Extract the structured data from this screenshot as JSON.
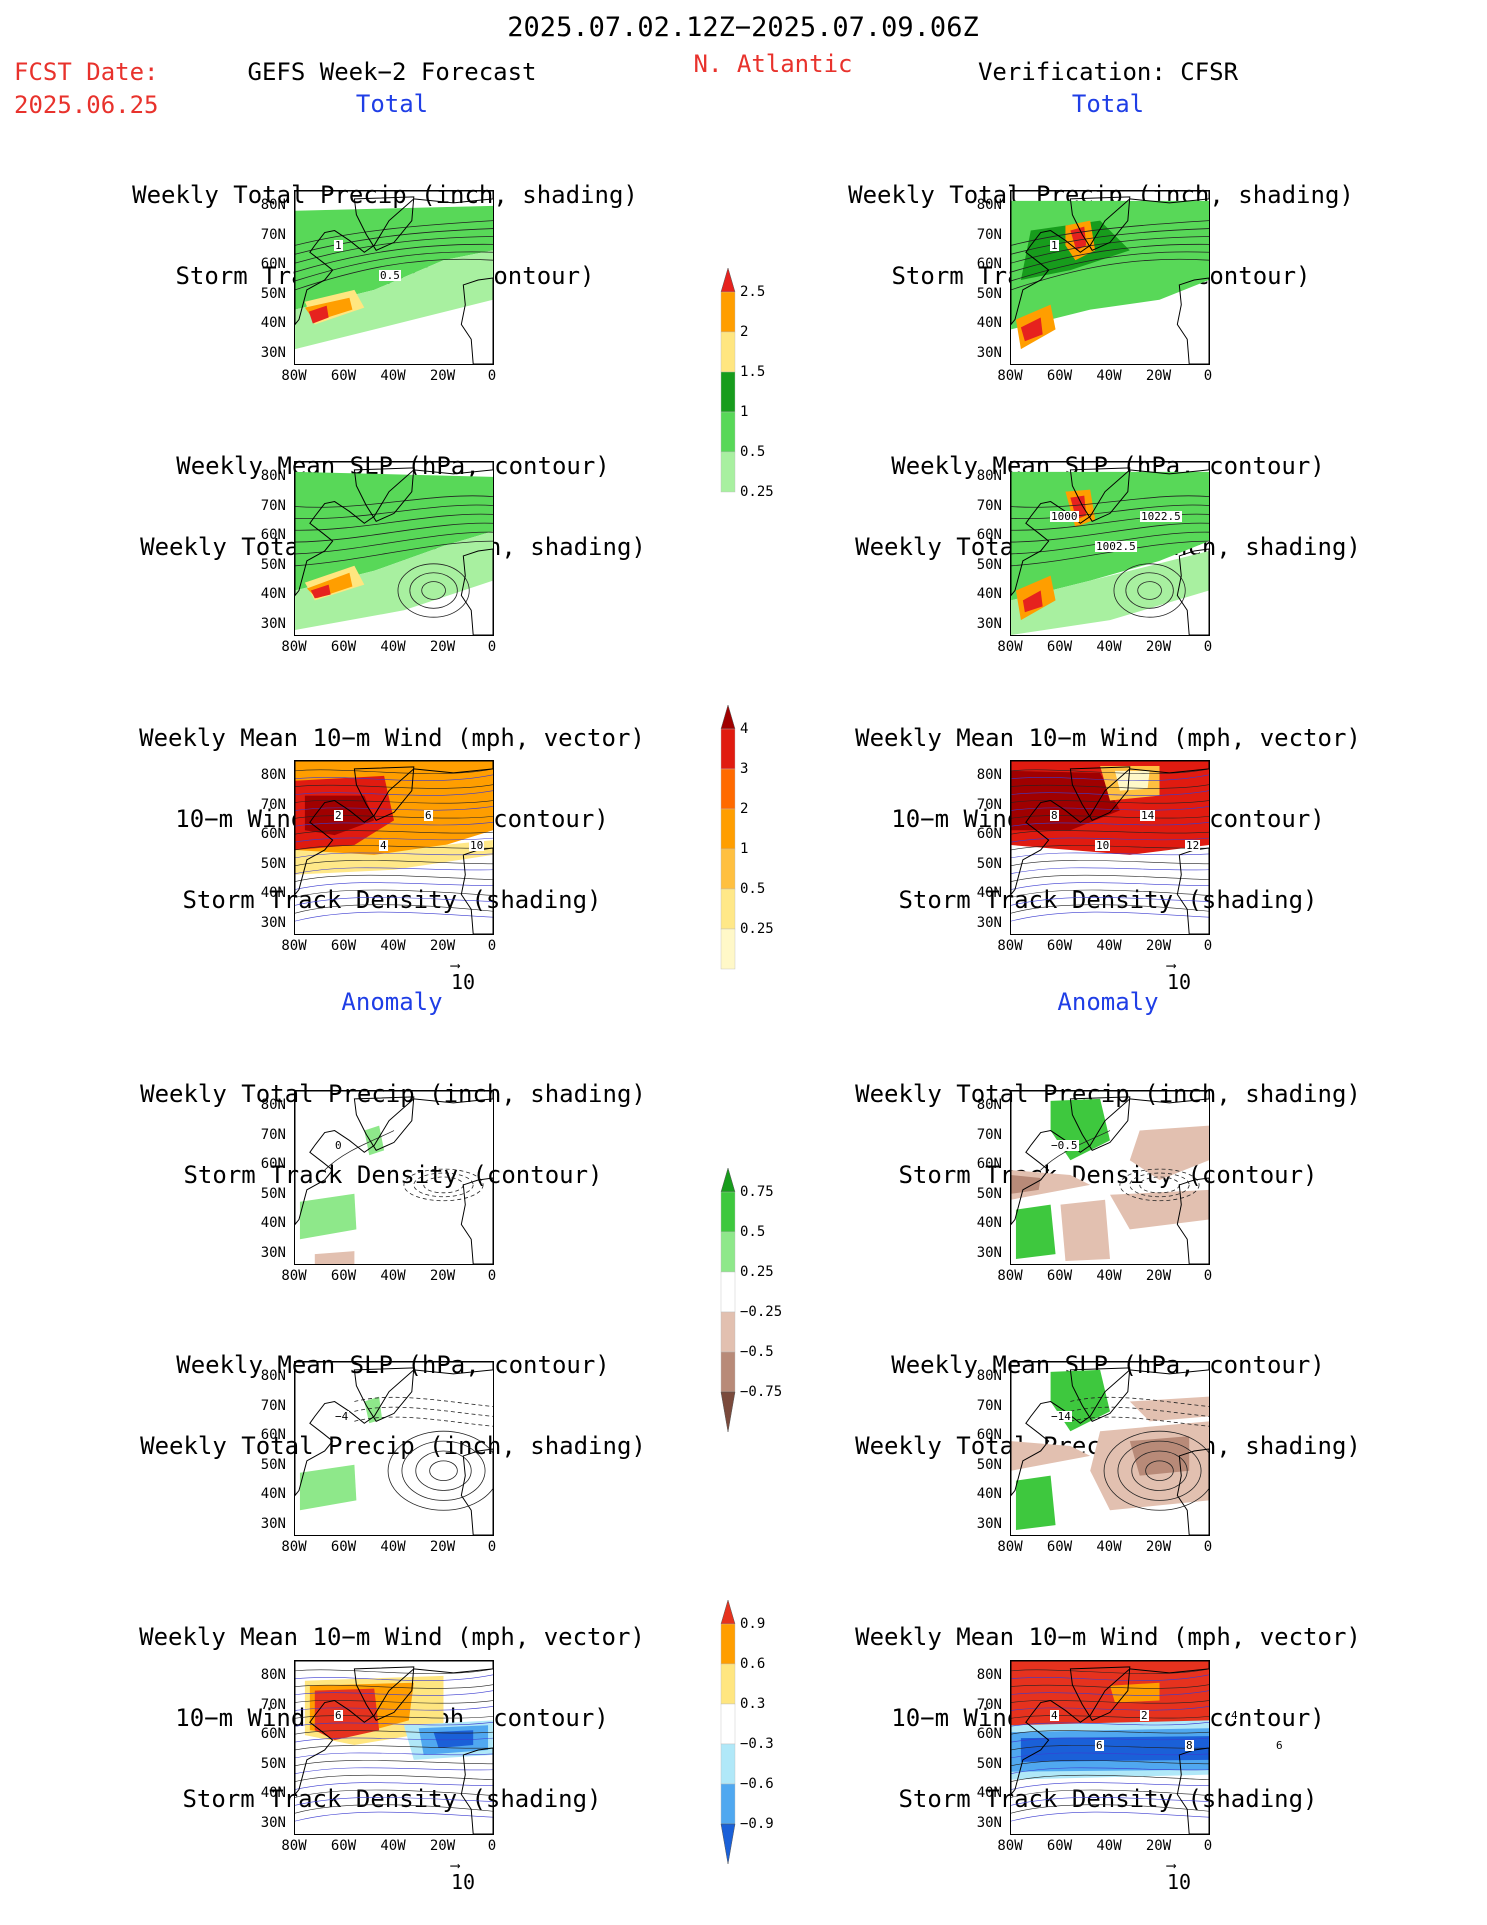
{
  "header": {
    "date_range": "2025.07.02.12Z−2025.07.09.06Z",
    "fcst_label": "FCST Date:",
    "fcst_date": "2025.06.25",
    "left_title": "GEFS Week−2 Forecast",
    "region": "N. Atlantic",
    "right_title": "Verification: CFSR"
  },
  "sections": {
    "total": "Total",
    "anomaly": "Anomaly"
  },
  "panel_titles": {
    "precip": [
      "Weekly Total Precip (inch, shading)",
      "Storm Track Density (contour)"
    ],
    "slp": [
      "Weekly Mean SLP (hPa, contour)",
      "Weekly Total Precip (inch, shading)"
    ],
    "wind": [
      "Weekly Mean 10−m Wind (mph, vector)",
      "10−m Wind Speed (mph, contour)",
      "Storm Track Density (shading)"
    ]
  },
  "axes": {
    "lat": [
      "80N",
      "70N",
      "60N",
      "50N",
      "40N",
      "30N"
    ],
    "lon": [
      "80W",
      "60W",
      "40W",
      "20W",
      "0"
    ]
  },
  "vector_ref": "10",
  "colorbars": {
    "precip_total": {
      "labels": [
        "2.5",
        "2",
        "1.5",
        "1",
        "0.5",
        "0.25"
      ],
      "colors": [
        "#e6221e",
        "#ff9e00",
        "#ffe680",
        "#179c1c",
        "#58d858",
        "#a8f0a0"
      ]
    },
    "std_total": {
      "labels": [
        "4",
        "3",
        "2",
        "1",
        "0.5",
        "0.25"
      ],
      "colors": [
        "#a00000",
        "#e01b10",
        "#ff6a00",
        "#ff9e00",
        "#ffc040",
        "#ffe888",
        "#fff8c8"
      ]
    },
    "precip_anom": {
      "labels": [
        "0.75",
        "0.5",
        "0.25",
        "−0.25",
        "−0.5",
        "−0.75"
      ],
      "colors": [
        "#179c1c",
        "#3ec83e",
        "#8ee88a",
        "#ffffff",
        "#e2c0b0",
        "#b88a78",
        "#7a4a3c"
      ]
    },
    "std_anom": {
      "labels": [
        "0.9",
        "0.6",
        "0.3",
        "−0.3",
        "−0.6",
        "−0.9"
      ],
      "colors": [
        "#e6321e",
        "#ff9e00",
        "#ffe680",
        "#ffffff",
        "#b0e8f8",
        "#50a8f0",
        "#1a60d8"
      ]
    }
  },
  "contour_labels": {
    "fc_precip_total": [
      "1",
      "0.5"
    ],
    "ob_precip_total": [
      "1"
    ],
    "ob_slp_total": [
      "1000",
      "1002.5",
      "1022.5"
    ],
    "fc_wind_total": [
      "2",
      "4",
      "6",
      "10"
    ],
    "ob_wind_total": [
      "8",
      "10",
      "14",
      "12"
    ],
    "fc_precip_anom": [
      "0"
    ],
    "ob_precip_anom": [
      "−0.5"
    ],
    "fc_slp_anom": [
      "−4"
    ],
    "ob_slp_anom": [
      "−14"
    ],
    "fc_wind_anom": [
      "6"
    ],
    "ob_wind_anom": [
      "4",
      "6",
      "2",
      "8",
      "4",
      "6"
    ]
  }
}
